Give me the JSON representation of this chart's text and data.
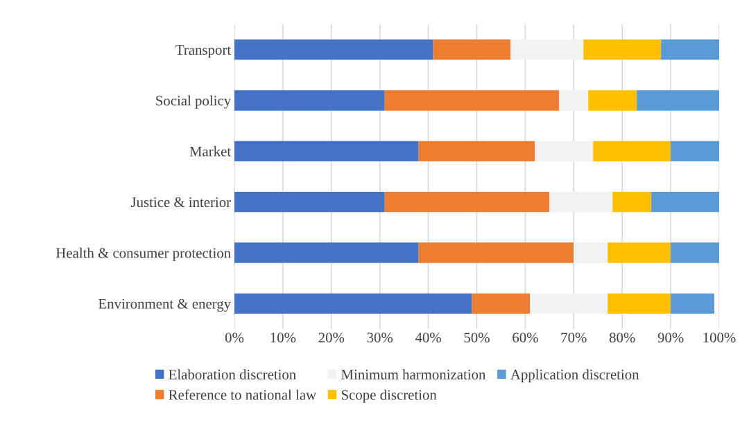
{
  "chart_data": {
    "type": "bar",
    "orientation": "horizontal",
    "stacked": true,
    "categories": [
      "Transport",
      "Social policy",
      "Market",
      "Justice & interior",
      "Health & consumer protection",
      "Environment & energy"
    ],
    "series": [
      {
        "name": "Elaboration discretion",
        "color": "#4472c4",
        "values": [
          41,
          31,
          38,
          31,
          38,
          49
        ]
      },
      {
        "name": "Reference to national law",
        "color": "#ed7d31",
        "values": [
          16,
          36,
          24,
          34,
          32,
          12
        ]
      },
      {
        "name": "Minimum harmonization",
        "color": "#f2f2f2",
        "values": [
          15,
          6,
          12,
          13,
          7,
          16
        ]
      },
      {
        "name": "Scope discretion",
        "color": "#ffc000",
        "values": [
          16,
          10,
          16,
          8,
          13,
          13
        ]
      },
      {
        "name": "Application discretion",
        "color": "#5b9bd5",
        "values": [
          12,
          17,
          10,
          14,
          10,
          9
        ]
      }
    ],
    "xlim": [
      0,
      100
    ],
    "xticks": [
      {
        "value": 0,
        "label": "0%"
      },
      {
        "value": 10,
        "label": "10%"
      },
      {
        "value": 20,
        "label": "20%"
      },
      {
        "value": 30,
        "label": "30%"
      },
      {
        "value": 40,
        "label": "40%"
      },
      {
        "value": 50,
        "label": "50%"
      },
      {
        "value": 60,
        "label": "60%"
      },
      {
        "value": 70,
        "label": "70%"
      },
      {
        "value": 80,
        "label": "80%"
      },
      {
        "value": 90,
        "label": "90%"
      },
      {
        "value": 100,
        "label": "100%"
      }
    ],
    "grid": "x",
    "legend": "bottom"
  }
}
